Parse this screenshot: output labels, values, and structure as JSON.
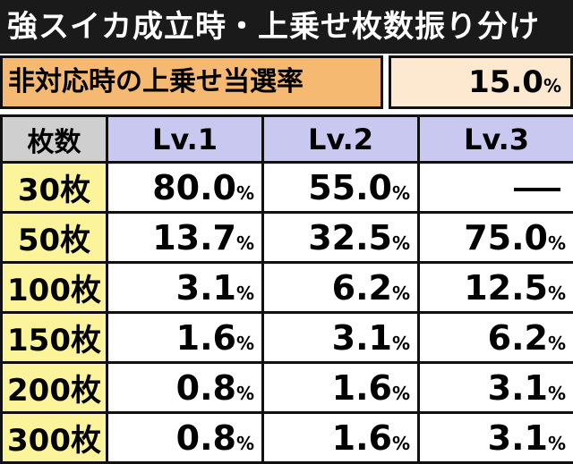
{
  "title": "強スイカ成立時・上乗せ枚数振り分け",
  "rate": {
    "label": "非対応時の上乗せ当選率",
    "value": "15.0",
    "unit": "%"
  },
  "table": {
    "corner": "枚数",
    "columns": [
      "Lv.1",
      "Lv.2",
      "Lv.3"
    ],
    "unit": "%",
    "rows": [
      {
        "label": "30枚",
        "values": [
          "80.0",
          "55.0",
          "—"
        ]
      },
      {
        "label": "50枚",
        "values": [
          "13.7",
          "32.5",
          "75.0"
        ]
      },
      {
        "label": "100枚",
        "values": [
          "3.1",
          "6.2",
          "12.5"
        ]
      },
      {
        "label": "150枚",
        "values": [
          "1.6",
          "3.1",
          "6.2"
        ]
      },
      {
        "label": "200枚",
        "values": [
          "0.8",
          "1.6",
          "3.1"
        ]
      },
      {
        "label": "300枚",
        "values": [
          "0.8",
          "1.6",
          "3.1"
        ]
      }
    ]
  }
}
